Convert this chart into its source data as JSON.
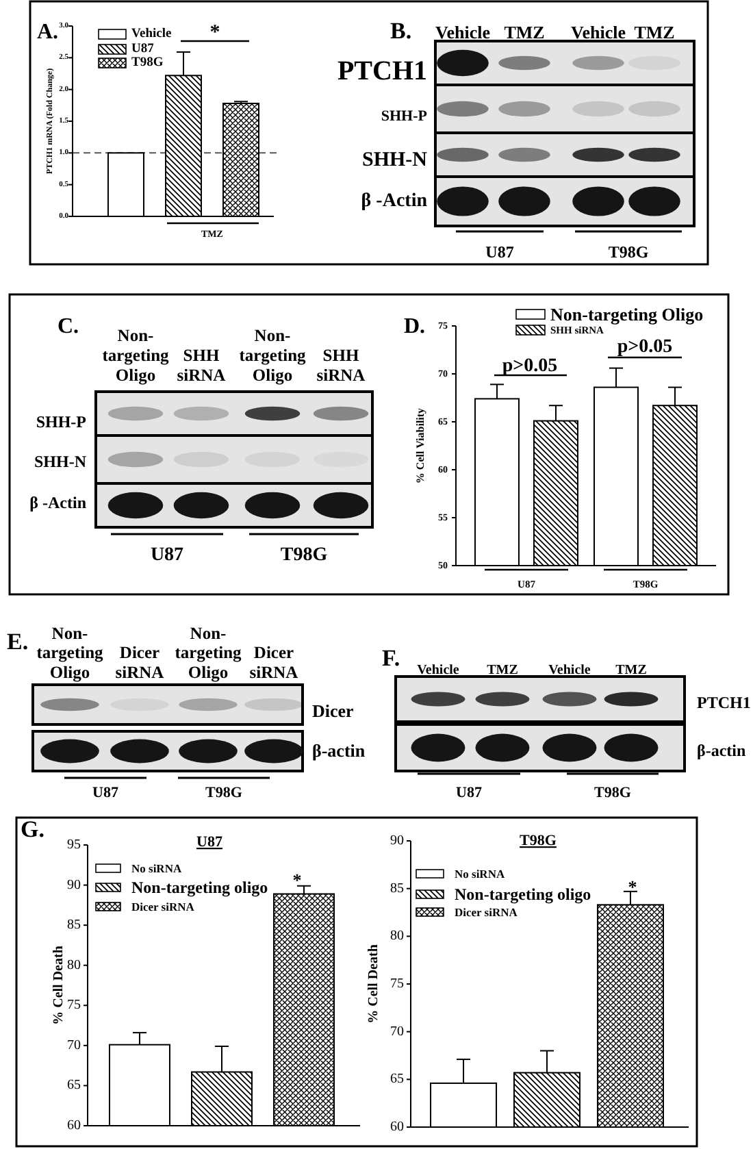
{
  "chart_data": [
    {
      "type": "bar",
      "ylabel": "PTCH1 mRNA (Fold Change)",
      "categories": [
        null,
        null,
        null
      ],
      "series": [
        {
          "name": "Vehicle",
          "color": "#ffffff",
          "values": [
            1.0,
            null,
            null
          ]
        },
        {
          "name": "U87",
          "color": "#000000",
          "values": [
            null,
            2.22,
            null
          ],
          "errors": [
            null,
            [
              2.22,
              2.59
            ],
            null
          ]
        },
        {
          "name": "T98G",
          "color": "#000000",
          "values": [
            null,
            null,
            1.78
          ],
          "errors": [
            null,
            null,
            [
              1.78,
              1.81
            ]
          ]
        }
      ],
      "ylim": [
        0,
        3
      ],
      "yticks": [
        {
          "value": 0,
          "label": "0.0"
        },
        {
          "value": 0.5,
          "label": "0.5"
        },
        {
          "value": 1,
          "label": "1.0"
        },
        {
          "value": 1.5,
          "label": "1.5"
        },
        {
          "value": 2,
          "label": "2.0"
        },
        {
          "value": 2.5,
          "label": "2.5"
        },
        {
          "value": 3,
          "label": "3.0"
        }
      ],
      "ref_lines": [
        {
          "axis": "y",
          "value": 1,
          "line_style": "dashed"
        }
      ],
      "legend": "top left",
      "annotations": [
        "A.",
        "*",
        "TMZ"
      ]
    },
    {
      "type": "other",
      "categories": [
        "Vehicle",
        "TMZ",
        "Vehicle",
        "TMZ"
      ],
      "annotations": [
        "B.",
        "PTCH1",
        "SHH-P",
        "SHH-N",
        "β -Actin",
        "U87",
        "T98G"
      ]
    },
    {
      "type": "other",
      "categories": [
        "Non-targeting Oligo",
        "SHH siRNA",
        "Non-targeting Oligo",
        "SHH siRNA"
      ],
      "annotations": [
        "C.",
        "SHH-P",
        "SHH-N",
        "β -Actin",
        "U87",
        "T98G"
      ]
    },
    {
      "type": "bar",
      "ylabel": "% Cell Viability",
      "categories": [
        "U87",
        "T98G"
      ],
      "series": [
        {
          "name": "Non-targeting Oligo",
          "color": "#ffffff",
          "values": [
            67.4,
            68.6
          ],
          "errors": [
            [
              67.4,
              68.9
            ],
            [
              68.6,
              70.6
            ]
          ]
        },
        {
          "name": "SHH siRNA",
          "color": "#000000",
          "values": [
            65.1,
            66.7
          ],
          "errors": [
            [
              65.1,
              66.7
            ],
            [
              66.7,
              68.6
            ]
          ]
        }
      ],
      "ylim": [
        50,
        75
      ],
      "yticks": [
        50,
        55,
        60,
        65,
        70,
        75
      ],
      "legend": "top right",
      "annotations": [
        "D.",
        "p>0.05",
        "p>0.05"
      ]
    },
    {
      "type": "other",
      "categories": [
        "Non-targeting Oligo",
        "Dicer siRNA",
        "Non-targeting Oligo",
        "Dicer siRNA"
      ],
      "annotations": [
        "E.",
        "Dicer",
        "β-actin",
        "U87",
        "T98G"
      ]
    },
    {
      "type": "other",
      "categories": [
        "Vehicle",
        "TMZ",
        "Vehicle",
        "TMZ"
      ],
      "annotations": [
        "F.",
        "PTCH1",
        "β-actin",
        "U87",
        "T98G"
      ]
    },
    {
      "type": "bar",
      "title": "U87",
      "ylabel": "% Cell Death",
      "categories": [
        null,
        null,
        null
      ],
      "series": [
        {
          "name": "No siRNA",
          "color": "#ffffff",
          "values": [
            70.1,
            null,
            null
          ],
          "errors": [
            [
              70.1,
              71.6
            ],
            null,
            null
          ]
        },
        {
          "name": "Non-targeting oligo",
          "color": "#000000",
          "values": [
            null,
            66.7,
            null
          ],
          "errors": [
            null,
            [
              66.7,
              69.9
            ],
            null
          ]
        },
        {
          "name": "Dicer siRNA",
          "color": "#000000",
          "values": [
            null,
            null,
            88.9
          ],
          "errors": [
            null,
            null,
            [
              88.9,
              89.9
            ]
          ]
        }
      ],
      "ylim": [
        60,
        95
      ],
      "yticks": [
        60,
        65,
        70,
        75,
        80,
        85,
        90,
        95
      ],
      "legend": "top left",
      "annotations": [
        "G.",
        "*"
      ]
    },
    {
      "type": "bar",
      "title": "T98G",
      "ylabel": "% Cell Death",
      "categories": [
        null,
        null,
        null
      ],
      "series": [
        {
          "name": "No siRNA",
          "color": "#ffffff",
          "values": [
            64.6,
            null,
            null
          ],
          "errors": [
            [
              64.6,
              67.1
            ],
            null,
            null
          ]
        },
        {
          "name": "Non-targeting oligo",
          "color": "#000000",
          "values": [
            null,
            65.7,
            null
          ],
          "errors": [
            null,
            [
              65.7,
              68.0
            ],
            null
          ]
        },
        {
          "name": "Dicer siRNA",
          "color": "#000000",
          "values": [
            null,
            null,
            83.3
          ],
          "errors": [
            null,
            null,
            [
              83.3,
              84.7
            ]
          ]
        }
      ],
      "ylim": [
        60,
        90
      ],
      "yticks": [
        60,
        65,
        70,
        75,
        80,
        85,
        90
      ],
      "legend": "top left",
      "annotations": [
        "*"
      ]
    }
  ]
}
